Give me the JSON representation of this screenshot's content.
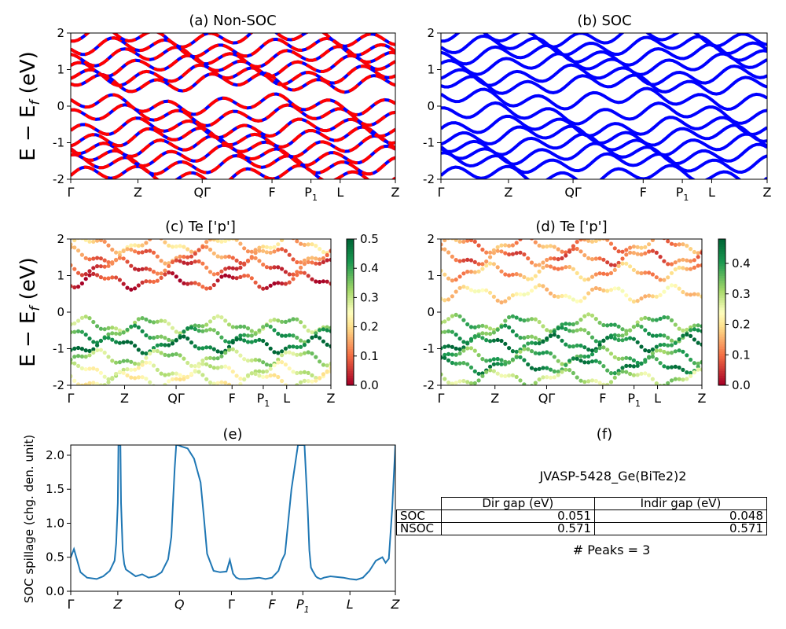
{
  "figure": {
    "ylabel_band": "E − E_f (eV)"
  },
  "chart_data": [
    {
      "id": "a",
      "type": "line",
      "title": "(a) Non-SOC",
      "ylim": [
        -2,
        2
      ],
      "yticks": [
        -2,
        -1,
        0,
        1,
        2
      ],
      "xticks": [
        "Γ",
        "Z",
        "QΓ",
        "F",
        "P1",
        "L",
        "Z"
      ],
      "series": [
        {
          "color": "#0000ff",
          "style": "solid"
        },
        {
          "color": "#ff0000",
          "style": "dashed"
        }
      ],
      "bands_approx": [
        -1.9,
        -1.6,
        -1.35,
        -1.1,
        -0.85,
        -0.6,
        -0.25,
        0.05,
        0.65,
        0.85,
        1.1,
        1.35,
        1.6,
        1.9
      ]
    },
    {
      "id": "b",
      "type": "line",
      "title": "(b) SOC",
      "ylim": [
        -2,
        2
      ],
      "yticks": [
        -2,
        -1,
        0,
        1,
        2
      ],
      "xticks": [
        "Γ",
        "Z",
        "QΓ",
        "F",
        "P1",
        "L",
        "Z"
      ],
      "series": [
        {
          "color": "#0000ff",
          "style": "solid"
        }
      ],
      "bands_approx": [
        -1.9,
        -1.55,
        -1.3,
        -1.05,
        -0.8,
        -0.55,
        -0.2,
        0.2,
        0.6,
        0.85,
        1.15,
        1.4,
        1.65,
        1.9
      ]
    },
    {
      "id": "c",
      "type": "scatter",
      "title": "(c)  Te ['p']",
      "ylim": [
        -2,
        2
      ],
      "yticks": [
        -2,
        -1,
        0,
        1,
        2
      ],
      "xticks": [
        "Γ",
        "Z",
        "QΓ",
        "F",
        "P1",
        "L",
        "Z"
      ],
      "colormap": "RdYlGn",
      "colorbar_ticks": [
        0.0,
        0.1,
        0.2,
        0.3,
        0.4,
        0.5
      ],
      "colorbar_range": [
        0,
        0.5
      ],
      "bands": [
        {
          "e": 1.85,
          "w": 0.18
        },
        {
          "e": 1.55,
          "w": 0.12
        },
        {
          "e": 1.25,
          "w": 0.08
        },
        {
          "e": 0.85,
          "w": 0.05
        },
        {
          "e": -0.35,
          "w": 0.33
        },
        {
          "e": -0.6,
          "w": 0.4
        },
        {
          "e": -0.9,
          "w": 0.48
        },
        {
          "e": -1.25,
          "w": 0.32
        },
        {
          "e": -1.6,
          "w": 0.27
        },
        {
          "e": -1.85,
          "w": 0.25
        }
      ]
    },
    {
      "id": "d",
      "type": "scatter",
      "title": "(d) Te ['p']",
      "ylim": [
        -2,
        2
      ],
      "yticks": [
        -2,
        -1,
        0,
        1,
        2
      ],
      "xticks": [
        "Γ",
        "Z",
        "QΓ",
        "F",
        "P1",
        "L",
        "Z"
      ],
      "colormap": "RdYlGn",
      "colorbar_ticks": [
        0.0,
        0.1,
        0.2,
        0.3,
        0.4
      ],
      "colorbar_range": [
        0,
        0.48
      ],
      "bands": [
        {
          "e": 1.85,
          "w": 0.13
        },
        {
          "e": 1.5,
          "w": 0.1
        },
        {
          "e": 1.1,
          "w": 0.15
        },
        {
          "e": 0.5,
          "w": 0.2
        },
        {
          "e": -0.3,
          "w": 0.35
        },
        {
          "e": -0.6,
          "w": 0.38
        },
        {
          "e": -0.85,
          "w": 0.44
        },
        {
          "e": -1.2,
          "w": 0.36
        },
        {
          "e": -1.45,
          "w": 0.42
        },
        {
          "e": -1.8,
          "w": 0.3
        }
      ]
    },
    {
      "id": "e",
      "type": "line",
      "title": "(e)",
      "ylabel": "SOC spillage (chg. den. unit)",
      "ylim": [
        0.0,
        2.15
      ],
      "yticks": [
        0.0,
        0.5,
        1.0,
        1.5,
        2.0
      ],
      "xticks": [
        "Γ",
        "Z",
        "Q",
        "Γ",
        "F",
        "P1",
        "L",
        "Z"
      ],
      "series": [
        {
          "color": "#1f77b4"
        }
      ],
      "x": [
        0.0,
        0.01,
        0.02,
        0.03,
        0.05,
        0.08,
        0.1,
        0.12,
        0.135,
        0.14,
        0.145,
        0.147,
        0.15,
        0.153,
        0.155,
        0.16,
        0.165,
        0.17,
        0.2,
        0.22,
        0.24,
        0.26,
        0.28,
        0.3,
        0.31,
        0.32,
        0.325,
        0.33,
        0.34,
        0.36,
        0.38,
        0.4,
        0.41,
        0.42,
        0.44,
        0.46,
        0.48,
        0.49,
        0.5,
        0.51,
        0.52,
        0.54,
        0.56,
        0.58,
        0.6,
        0.62,
        0.64,
        0.65,
        0.66,
        0.68,
        0.7,
        0.71,
        0.72,
        0.73,
        0.735,
        0.74,
        0.745,
        0.75,
        0.755,
        0.76,
        0.77,
        0.78,
        0.8,
        0.84,
        0.86,
        0.88,
        0.9,
        0.92,
        0.94,
        0.96,
        0.97,
        0.98,
        0.99,
        1.0
      ],
      "values": [
        0.5,
        0.62,
        0.45,
        0.28,
        0.2,
        0.18,
        0.22,
        0.3,
        0.45,
        0.7,
        1.3,
        2.15,
        2.15,
        2.15,
        1.3,
        0.6,
        0.4,
        0.32,
        0.22,
        0.25,
        0.2,
        0.22,
        0.28,
        0.47,
        0.8,
        1.8,
        2.15,
        2.15,
        2.13,
        2.1,
        1.95,
        1.6,
        1.1,
        0.55,
        0.3,
        0.28,
        0.29,
        0.46,
        0.26,
        0.2,
        0.18,
        0.18,
        0.19,
        0.2,
        0.18,
        0.2,
        0.3,
        0.45,
        0.55,
        1.5,
        2.15,
        2.15,
        2.15,
        1.2,
        0.6,
        0.35,
        0.3,
        0.26,
        0.22,
        0.2,
        0.18,
        0.2,
        0.22,
        0.2,
        0.18,
        0.17,
        0.2,
        0.3,
        0.45,
        0.5,
        0.42,
        0.48,
        1.2,
        2.15
      ]
    }
  ],
  "panel_f": {
    "title": "(f)",
    "material": "JVASP-5428_Ge(BiTe2)2",
    "table": {
      "headers": [
        "Dir gap (eV)",
        "Indir gap (eV)"
      ],
      "rows": [
        {
          "label": "SOC",
          "dir": "0.051",
          "indir": "0.048"
        },
        {
          "label": "NSOC",
          "dir": "0.571",
          "indir": "0.571"
        }
      ]
    },
    "peaks": "# Peaks = 3"
  }
}
